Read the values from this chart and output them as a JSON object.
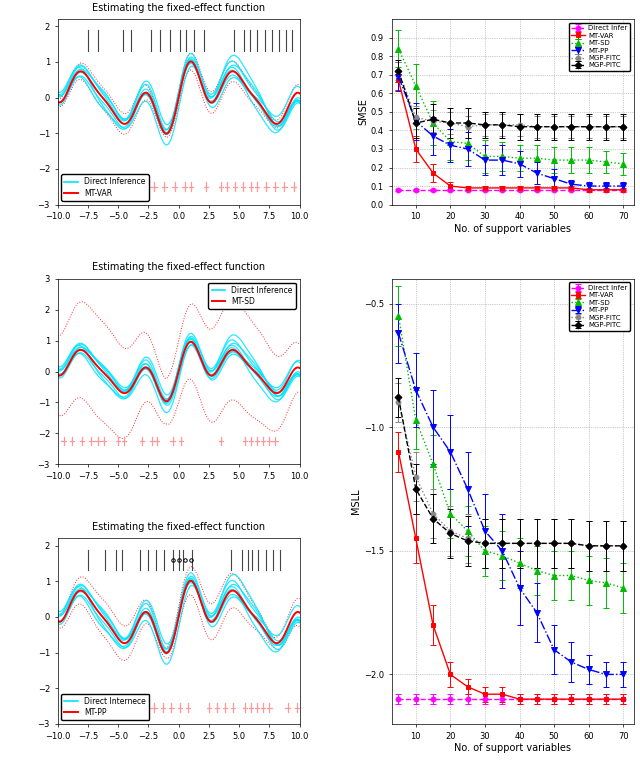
{
  "title": "Estimating the fixed-effect function",
  "smse_ylabel": "SMSE",
  "msll_ylabel": "MSLL",
  "xlabel_support": "No. of support variables",
  "support_vars": [
    5,
    10,
    15,
    20,
    25,
    30,
    35,
    40,
    45,
    50,
    55,
    60,
    65,
    70
  ],
  "smse_direct": [
    0.08,
    0.08,
    0.08,
    0.08,
    0.08,
    0.08,
    0.08,
    0.08,
    0.08,
    0.08,
    0.08,
    0.08,
    0.08,
    0.08
  ],
  "smse_direct_err": [
    0.005,
    0.005,
    0.005,
    0.005,
    0.005,
    0.005,
    0.005,
    0.005,
    0.005,
    0.005,
    0.005,
    0.005,
    0.005,
    0.005
  ],
  "smse_mtvar": [
    0.67,
    0.3,
    0.17,
    0.1,
    0.09,
    0.09,
    0.09,
    0.09,
    0.09,
    0.09,
    0.09,
    0.08,
    0.08,
    0.08
  ],
  "smse_mtvar_err": [
    0.05,
    0.07,
    0.05,
    0.02,
    0.01,
    0.01,
    0.01,
    0.01,
    0.01,
    0.01,
    0.01,
    0.01,
    0.01,
    0.01
  ],
  "smse_mtsd": [
    0.84,
    0.64,
    0.44,
    0.34,
    0.33,
    0.26,
    0.26,
    0.25,
    0.25,
    0.24,
    0.24,
    0.24,
    0.23,
    0.22
  ],
  "smse_mtsd_err": [
    0.1,
    0.12,
    0.12,
    0.1,
    0.09,
    0.09,
    0.08,
    0.07,
    0.07,
    0.07,
    0.07,
    0.07,
    0.06,
    0.06
  ],
  "smse_mtpp": [
    0.69,
    0.45,
    0.37,
    0.32,
    0.3,
    0.24,
    0.24,
    0.22,
    0.17,
    0.14,
    0.11,
    0.1,
    0.1,
    0.1
  ],
  "smse_mtpp_err": [
    0.08,
    0.1,
    0.1,
    0.09,
    0.09,
    0.08,
    0.08,
    0.07,
    0.06,
    0.05,
    0.02,
    0.02,
    0.02,
    0.02
  ],
  "smse_mgpfitc": [
    0.72,
    0.47,
    0.45,
    0.44,
    0.42,
    0.43,
    0.43,
    0.43,
    0.42,
    0.42,
    0.42,
    0.42,
    0.42,
    0.42
  ],
  "smse_mgpfitc_err": [
    0.05,
    0.06,
    0.06,
    0.06,
    0.06,
    0.06,
    0.06,
    0.06,
    0.06,
    0.06,
    0.06,
    0.06,
    0.06,
    0.06
  ],
  "smse_mgppitc": [
    0.72,
    0.44,
    0.46,
    0.44,
    0.44,
    0.43,
    0.43,
    0.42,
    0.42,
    0.42,
    0.42,
    0.42,
    0.42,
    0.42
  ],
  "smse_mgppitc_err": [
    0.06,
    0.08,
    0.08,
    0.08,
    0.08,
    0.07,
    0.07,
    0.07,
    0.07,
    0.07,
    0.07,
    0.07,
    0.07,
    0.07
  ],
  "msll_direct": [
    -2.1,
    -2.1,
    -2.1,
    -2.1,
    -2.1,
    -2.1,
    -2.1,
    -2.1,
    -2.1,
    -2.1,
    -2.1,
    -2.1,
    -2.1,
    -2.1
  ],
  "msll_direct_err": [
    0.02,
    0.02,
    0.02,
    0.02,
    0.02,
    0.02,
    0.02,
    0.02,
    0.02,
    0.02,
    0.02,
    0.02,
    0.02,
    0.02
  ],
  "msll_mtvar": [
    -1.1,
    -1.45,
    -1.8,
    -2.0,
    -2.05,
    -2.08,
    -2.08,
    -2.1,
    -2.1,
    -2.1,
    -2.1,
    -2.1,
    -2.1,
    -2.1
  ],
  "msll_mtvar_err": [
    0.08,
    0.1,
    0.08,
    0.05,
    0.03,
    0.03,
    0.03,
    0.02,
    0.02,
    0.02,
    0.02,
    0.02,
    0.02,
    0.02
  ],
  "msll_mtsd": [
    -0.55,
    -0.97,
    -1.15,
    -1.35,
    -1.42,
    -1.5,
    -1.52,
    -1.55,
    -1.58,
    -1.6,
    -1.6,
    -1.62,
    -1.63,
    -1.65
  ],
  "msll_mtsd_err": [
    0.12,
    0.12,
    0.12,
    0.1,
    0.1,
    0.1,
    0.1,
    0.1,
    0.1,
    0.1,
    0.1,
    0.1,
    0.1,
    0.1
  ],
  "msll_mtpp": [
    -0.62,
    -0.85,
    -1.0,
    -1.1,
    -1.25,
    -1.42,
    -1.5,
    -1.65,
    -1.75,
    -1.9,
    -1.95,
    -1.98,
    -2.0,
    -2.0
  ],
  "msll_mtpp_err": [
    0.12,
    0.15,
    0.15,
    0.15,
    0.15,
    0.15,
    0.15,
    0.15,
    0.12,
    0.1,
    0.08,
    0.06,
    0.05,
    0.05
  ],
  "msll_mgpfitc": [
    -0.9,
    -1.2,
    -1.35,
    -1.42,
    -1.45,
    -1.47,
    -1.47,
    -1.47,
    -1.47,
    -1.47,
    -1.47,
    -1.48,
    -1.48,
    -1.48
  ],
  "msll_mgpfitc_err": [
    0.08,
    0.1,
    0.1,
    0.1,
    0.1,
    0.1,
    0.1,
    0.1,
    0.1,
    0.1,
    0.1,
    0.1,
    0.1,
    0.1
  ],
  "msll_mgppitc": [
    -0.88,
    -1.25,
    -1.37,
    -1.43,
    -1.46,
    -1.47,
    -1.47,
    -1.47,
    -1.47,
    -1.47,
    -1.47,
    -1.48,
    -1.48,
    -1.48
  ],
  "msll_mgppitc_err": [
    0.08,
    0.1,
    0.1,
    0.1,
    0.1,
    0.1,
    0.1,
    0.1,
    0.1,
    0.1,
    0.1,
    0.1,
    0.1,
    0.1
  ],
  "color_direct": "#ff00ff",
  "color_mtvar": "#ff0000",
  "color_mtsd": "#00bb00",
  "color_mtpp": "#0000ff",
  "color_mgpfitc": "#888888",
  "color_mgppitc": "#000000",
  "color_cyan": "#00e5ff",
  "cross_color": "#ff9999",
  "support_marker_color": "#444444"
}
